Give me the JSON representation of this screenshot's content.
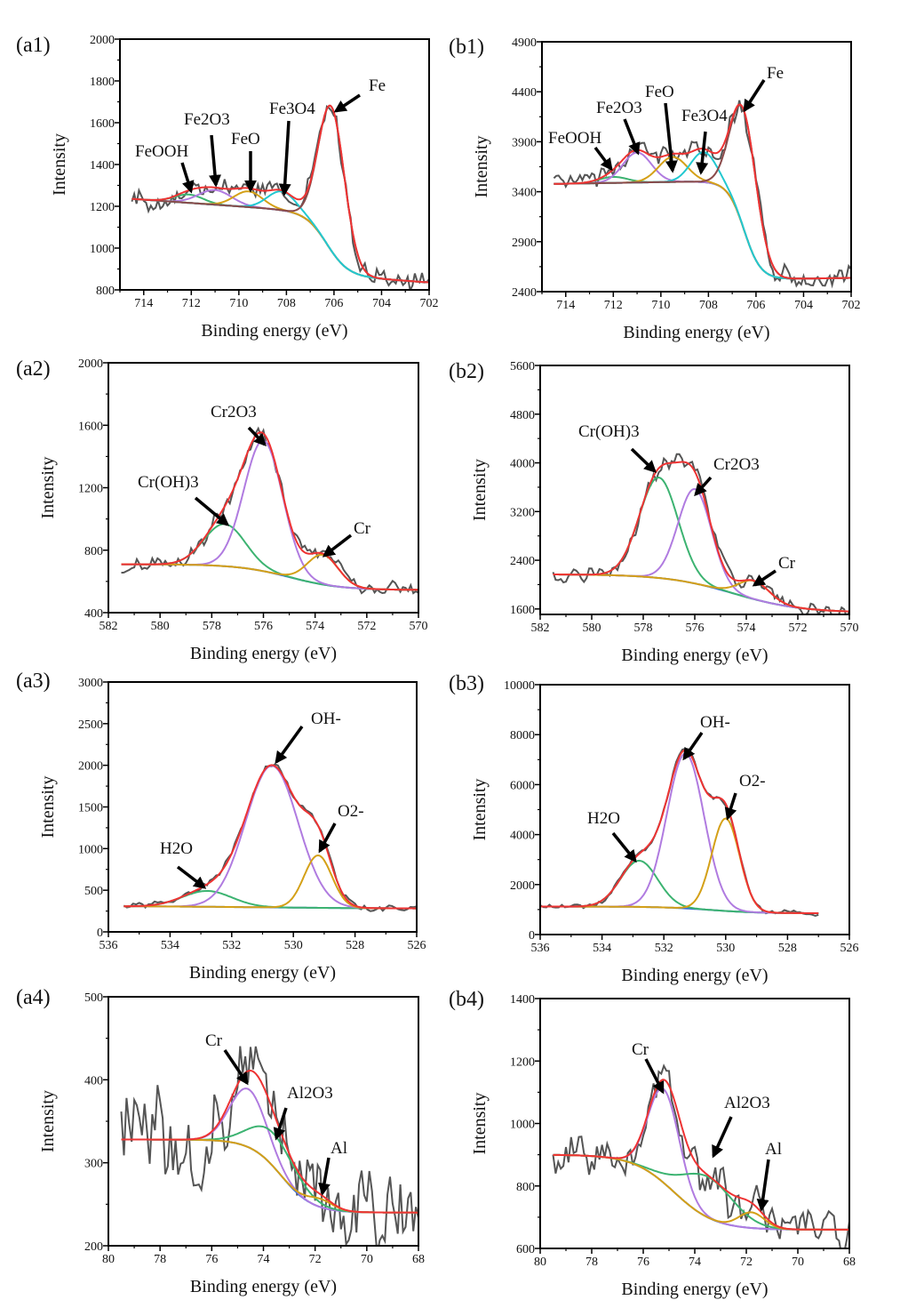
{
  "chart_data": [
    {
      "panel": "(a1)",
      "type": "line",
      "xlabel": "Binding energy (eV)",
      "ylabel": "Intensity",
      "xlim": [
        715,
        702
      ],
      "ylim": [
        800,
        2000
      ],
      "xticks": [
        714,
        712,
        710,
        708,
        706,
        704,
        702
      ],
      "yticks": [
        800,
        1000,
        1200,
        1400,
        1600,
        1800,
        2000
      ],
      "background": {
        "low": 870,
        "high": 1170,
        "center": 706.3,
        "width": 0.45,
        "slope": 8,
        "color": "#3b6fd6"
      },
      "noise": 45,
      "peaks": [
        {
          "name": "FeOOH",
          "center": 712.1,
          "amp": 40,
          "sigma": 0.6,
          "color": "#3cb371"
        },
        {
          "name": "Fe2O3",
          "center": 711.0,
          "amp": 70,
          "sigma": 0.7,
          "color": "#b07be0"
        },
        {
          "name": "FeO",
          "center": 709.6,
          "amp": 75,
          "sigma": 0.6,
          "color": "#d4a017"
        },
        {
          "name": "Fe3O4",
          "center": 708.2,
          "amp": 90,
          "sigma": 0.6,
          "color": "#22c8d0"
        },
        {
          "name": "Fe",
          "center": 706.1,
          "amp": 690,
          "sigma": 0.55,
          "color": "#8b4a4a"
        }
      ],
      "envelope_color": "#ee3333",
      "raw_color": "#555555",
      "annotations": [
        "FeOOH",
        "Fe2O3",
        "FeO",
        "Fe3O4",
        "Fe"
      ]
    },
    {
      "panel": "(b1)",
      "type": "line",
      "xlabel": "Binding energy (eV)",
      "ylabel": "Intensity",
      "xlim": [
        715,
        702
      ],
      "ylim": [
        2400,
        4900
      ],
      "xticks": [
        714,
        712,
        710,
        708,
        706,
        704,
        702
      ],
      "yticks": [
        2400,
        2900,
        3400,
        3900,
        4400,
        4900
      ],
      "background": {
        "low": 2520,
        "high": 3510,
        "center": 706.5,
        "width": 0.35,
        "slope": -4,
        "color": "#3b6fd6"
      },
      "noise": 90,
      "peaks": [
        {
          "name": "FeOOH",
          "center": 712.0,
          "amp": 60,
          "sigma": 0.6,
          "color": "#3cb371"
        },
        {
          "name": "Fe2O3",
          "center": 711.0,
          "amp": 300,
          "sigma": 0.6,
          "color": "#b07be0"
        },
        {
          "name": "FeO",
          "center": 709.5,
          "amp": 250,
          "sigma": 0.6,
          "color": "#d4a017"
        },
        {
          "name": "Fe3O4",
          "center": 708.2,
          "amp": 300,
          "sigma": 0.55,
          "color": "#22c8d0"
        },
        {
          "name": "Fe",
          "center": 706.5,
          "amp": 1190,
          "sigma": 0.55,
          "color": "#8b4a4a"
        }
      ],
      "envelope_color": "#ee3333",
      "raw_color": "#555555",
      "annotations": [
        "FeOOH",
        "Fe2O3",
        "FeO",
        "Fe3O4",
        "Fe"
      ]
    },
    {
      "panel": "(a2)",
      "type": "line",
      "xlabel": "Binding energy (eV)",
      "ylabel": "Intensity",
      "xlim": [
        582,
        570
      ],
      "ylim": [
        400,
        2000
      ],
      "xticks": [
        582,
        580,
        578,
        576,
        574,
        572,
        570
      ],
      "yticks": [
        400,
        800,
        1200,
        1600,
        2000
      ],
      "background": {
        "low": 545,
        "high": 710,
        "center": 575,
        "width": 1.0,
        "slope": 0,
        "color": "#3b6fd6"
      },
      "noise": 40,
      "peaks": [
        {
          "name": "Cr(OH)3",
          "center": 577.5,
          "amp": 270,
          "sigma": 0.8,
          "color": "#3cb371"
        },
        {
          "name": "Cr2O3",
          "center": 576.0,
          "amp": 835,
          "sigma": 0.75,
          "color": "#b07be0"
        },
        {
          "name": "Cr",
          "center": 573.7,
          "amp": 190,
          "sigma": 0.6,
          "color": "#d4a017"
        }
      ],
      "envelope_color": "#ee3333",
      "raw_color": "#555555",
      "annotations": [
        "Cr2O3",
        "Cr(OH)3",
        "Cr"
      ]
    },
    {
      "panel": "(b2)",
      "type": "line",
      "xlabel": "Binding energy (eV)",
      "ylabel": "Intensity",
      "xlim": [
        582,
        570
      ],
      "ylim": [
        1510,
        5600
      ],
      "xticks": [
        582,
        580,
        578,
        576,
        574,
        572,
        570
      ],
      "yticks": [
        1600,
        2400,
        3200,
        4000,
        4800,
        5600
      ],
      "background": {
        "low": 1540,
        "high": 2170,
        "center": 574.5,
        "width": 1.3,
        "slope": 0,
        "color": "#3b6fd6"
      },
      "noise": 110,
      "peaks": [
        {
          "name": "Cr(OH)3",
          "center": 577.4,
          "amp": 1650,
          "sigma": 0.75,
          "color": "#3cb371"
        },
        {
          "name": "Cr2O3",
          "center": 576.0,
          "amp": 1550,
          "sigma": 0.65,
          "color": "#b07be0"
        },
        {
          "name": "Cr",
          "center": 573.7,
          "amp": 300,
          "sigma": 0.6,
          "color": "#d4a017"
        }
      ],
      "envelope_color": "#ee3333",
      "raw_color": "#555555",
      "annotations": [
        "Cr(OH)3",
        "Cr2O3",
        "Cr"
      ]
    },
    {
      "panel": "(a3)",
      "type": "line",
      "xlabel": "Binding energy (eV)",
      "ylabel": "Intensity",
      "xlim": [
        536,
        526
      ],
      "ylim": [
        0,
        3000
      ],
      "xticks": [
        536,
        534,
        532,
        530,
        528,
        526
      ],
      "yticks": [
        0,
        500,
        1000,
        1500,
        2000,
        2500,
        3000
      ],
      "background": {
        "low": 280,
        "high": 310,
        "center": 531,
        "width": 2,
        "slope": 0,
        "color": "#3b6fd6"
      },
      "noise": 35,
      "peaks": [
        {
          "name": "H2O",
          "center": 532.8,
          "amp": 190,
          "sigma": 0.8,
          "color": "#3cb371"
        },
        {
          "name": "OH-",
          "center": 530.7,
          "amp": 1700,
          "sigma": 0.85,
          "color": "#b07be0"
        },
        {
          "name": "O2-",
          "center": 529.2,
          "amp": 630,
          "sigma": 0.45,
          "color": "#d4a017"
        }
      ],
      "envelope_color": "#ee3333",
      "raw_color": "#555555",
      "annotations": [
        "OH-",
        "O2-",
        "H2O"
      ]
    },
    {
      "panel": "(b3)",
      "type": "line",
      "xlabel": "Binding energy (eV)",
      "ylabel": "Intensity",
      "xlim": [
        536,
        526
      ],
      "data_xrange": [
        536,
        527
      ],
      "ylim": [
        0,
        10000
      ],
      "xticks": [
        536,
        534,
        532,
        530,
        528,
        526
      ],
      "yticks": [
        0,
        2000,
        4000,
        6000,
        8000,
        10000
      ],
      "background": {
        "low": 850,
        "high": 1120,
        "center": 530.5,
        "width": 0.8,
        "slope": 0,
        "color": "#3b6fd6"
      },
      "noise": 90,
      "peaks": [
        {
          "name": "H2O",
          "center": 532.8,
          "amp": 1850,
          "sigma": 0.6,
          "color": "#3cb371"
        },
        {
          "name": "OH-",
          "center": 531.3,
          "amp": 6200,
          "sigma": 0.6,
          "color": "#b07be0"
        },
        {
          "name": "O2-",
          "center": 530.0,
          "amp": 3700,
          "sigma": 0.45,
          "color": "#d4a017"
        }
      ],
      "envelope_color": "#ee3333",
      "raw_color": "#555555",
      "annotations": [
        "OH-",
        "O2-",
        "H2O"
      ]
    },
    {
      "panel": "(a4)",
      "type": "line",
      "xlabel": "Binding energy (eV)",
      "ylabel": "Intensity",
      "xlim": [
        80,
        68
      ],
      "ylim": [
        200,
        500
      ],
      "xticks": [
        80,
        78,
        76,
        74,
        72,
        70,
        68
      ],
      "yticks": [
        200,
        300,
        400,
        500
      ],
      "background": {
        "low": 240,
        "high": 328,
        "center": 73.3,
        "width": 0.6,
        "slope": 0,
        "color": "#3b6fd6"
      },
      "noise": 45,
      "peaks": [
        {
          "name": "Cr",
          "center": 74.6,
          "amp": 70,
          "sigma": 0.7,
          "color": "#b07be0"
        },
        {
          "name": "Al2O3",
          "center": 73.6,
          "amp": 40,
          "sigma": 0.9,
          "color": "#3cb371"
        },
        {
          "name": "Al",
          "center": 71.8,
          "amp": 10,
          "sigma": 0.5,
          "color": "#d4a017"
        }
      ],
      "envelope_color": "#ee3333",
      "raw_color": "#555555",
      "annotations": [
        "Cr",
        "Al2O3",
        "Al"
      ]
    },
    {
      "panel": "(b4)",
      "type": "line",
      "xlabel": "Binding energy (eV)",
      "ylabel": "Intensity",
      "xlim": [
        80,
        68
      ],
      "ylim": [
        600,
        1400
      ],
      "xticks": [
        80,
        78,
        76,
        74,
        72,
        70,
        68
      ],
      "yticks": [
        600,
        800,
        1000,
        1200,
        1400
      ],
      "background": {
        "low": 660,
        "high": 900,
        "center": 74.8,
        "width": 0.8,
        "slope": 0,
        "color": "#3b6fd6"
      },
      "noise": 60,
      "peaks": [
        {
          "name": "Cr",
          "center": 75.2,
          "amp": 300,
          "sigma": 0.6,
          "color": "#b07be0"
        },
        {
          "name": "Al2O3",
          "center": 73.5,
          "amp": 130,
          "sigma": 1.0,
          "color": "#3cb371"
        },
        {
          "name": "Al",
          "center": 71.8,
          "amp": 50,
          "sigma": 0.5,
          "color": "#d4a017"
        }
      ],
      "envelope_color": "#ee3333",
      "raw_color": "#555555",
      "annotations": [
        "Cr",
        "Al2O3",
        "Al"
      ]
    }
  ]
}
